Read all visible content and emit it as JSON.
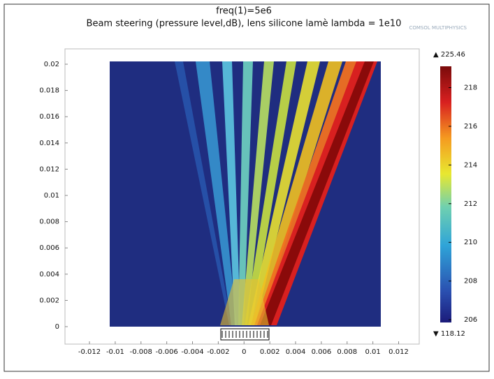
{
  "chart_data": {
    "type": "heatmap",
    "title": "freq(1)=5e6",
    "subtitle": "Beam steering (pressure level,dB), lens silicone lamè lambda = 1e10",
    "logo": "COMSOL MULTIPHYSICS",
    "xlim": [
      -0.0139,
      0.0136
    ],
    "ylim": [
      -0.00133,
      0.02117
    ],
    "xticks": [
      -0.012,
      -0.01,
      -0.008,
      -0.006,
      -0.004,
      -0.002,
      0,
      0.002,
      0.004,
      0.006,
      0.008,
      0.01,
      0.012
    ],
    "yticks": [
      0,
      0.002,
      0.004,
      0.006,
      0.008,
      0.01,
      0.012,
      0.014,
      0.016,
      0.018,
      0.02
    ],
    "colorbar": {
      "clim": [
        205.86,
        219.1
      ],
      "ticks": [
        206,
        208,
        210,
        212,
        214,
        216,
        218
      ],
      "max_label": "▲ 225.46",
      "min_label": "▼ 118.12"
    }
  }
}
